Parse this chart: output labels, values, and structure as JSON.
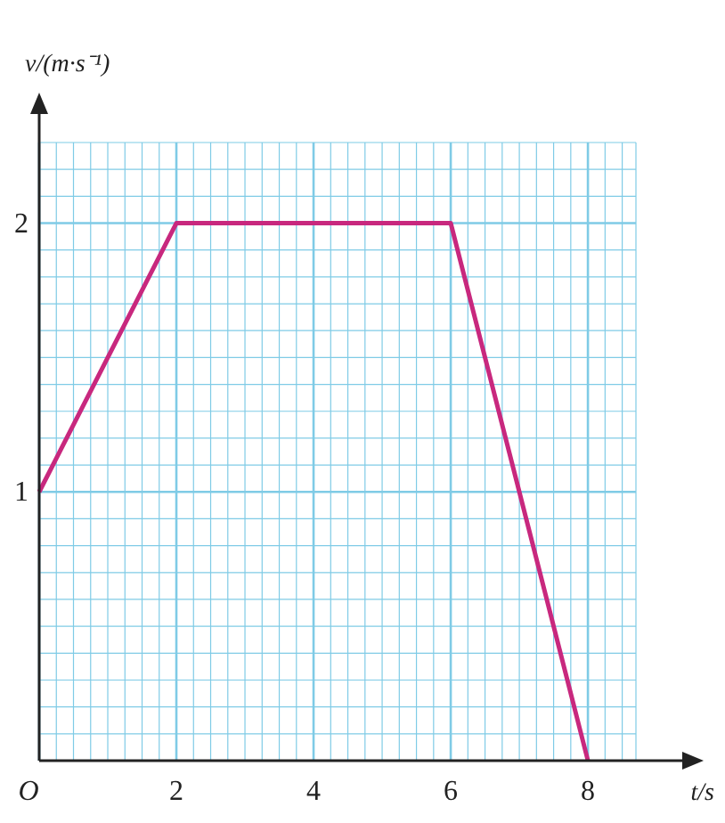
{
  "chart_data": {
    "type": "line",
    "xlabel": "t/s",
    "ylabel": "v/(m·s⁻¹)",
    "x": [
      0,
      2,
      6,
      8
    ],
    "series": [
      {
        "color": "#c8287e",
        "values": [
          1,
          2,
          2,
          0
        ]
      }
    ],
    "xlim": [
      0,
      8.7
    ],
    "ylim": [
      0,
      2.3
    ],
    "xticks": [
      {
        "value": 0,
        "label": "O"
      },
      {
        "value": 0.25,
        "label": null
      },
      {
        "value": 0.5,
        "label": null
      },
      {
        "value": 0.75,
        "label": null
      },
      {
        "value": 1,
        "label": null
      },
      {
        "value": 1.25,
        "label": null
      },
      {
        "value": 1.5,
        "label": null
      },
      {
        "value": 1.75,
        "label": null
      },
      2,
      {
        "value": 2.25,
        "label": null
      },
      {
        "value": 2.5,
        "label": null
      },
      {
        "value": 2.75,
        "label": null
      },
      {
        "value": 3,
        "label": null
      },
      {
        "value": 3.25,
        "label": null
      },
      {
        "value": 3.5,
        "label": null
      },
      {
        "value": 3.75,
        "label": null
      },
      4,
      {
        "value": 4.25,
        "label": null
      },
      {
        "value": 4.5,
        "label": null
      },
      {
        "value": 4.75,
        "label": null
      },
      {
        "value": 5,
        "label": null
      },
      {
        "value": 5.25,
        "label": null
      },
      {
        "value": 5.5,
        "label": null
      },
      {
        "value": 5.75,
        "label": null
      },
      6,
      {
        "value": 6.25,
        "label": null
      },
      {
        "value": 6.5,
        "label": null
      },
      {
        "value": 6.75,
        "label": null
      },
      {
        "value": 7,
        "label": null
      },
      {
        "value": 7.25,
        "label": null
      },
      {
        "value": 7.5,
        "label": null
      },
      {
        "value": 7.75,
        "label": null
      },
      8,
      {
        "value": 8.25,
        "label": null
      },
      {
        "value": 8.5,
        "label": null
      },
      {
        "value": 8.7,
        "label": null
      }
    ],
    "yticks": [
      {
        "value": 0.1,
        "label": null
      },
      {
        "value": 0.2,
        "label": null
      },
      {
        "value": 0.3,
        "label": null
      },
      {
        "value": 0.4,
        "label": null
      },
      {
        "value": 0.5,
        "label": null
      },
      {
        "value": 0.6,
        "label": null
      },
      {
        "value": 0.7,
        "label": null
      },
      {
        "value": 0.8,
        "label": null
      },
      {
        "value": 0.9,
        "label": null
      },
      1,
      {
        "value": 1.1,
        "label": null
      },
      {
        "value": 1.2,
        "label": null
      },
      {
        "value": 1.3,
        "label": null
      },
      {
        "value": 1.4,
        "label": null
      },
      {
        "value": 1.5,
        "label": null
      },
      {
        "value": 1.6,
        "label": null
      },
      {
        "value": 1.7,
        "label": null
      },
      {
        "value": 1.8,
        "label": null
      },
      {
        "value": 1.9,
        "label": null
      },
      2,
      {
        "value": 2.1,
        "label": null
      },
      {
        "value": 2.2,
        "label": null
      },
      {
        "value": 2.3,
        "label": null
      }
    ],
    "grid": true,
    "marker": "none",
    "line_style": "solid"
  }
}
